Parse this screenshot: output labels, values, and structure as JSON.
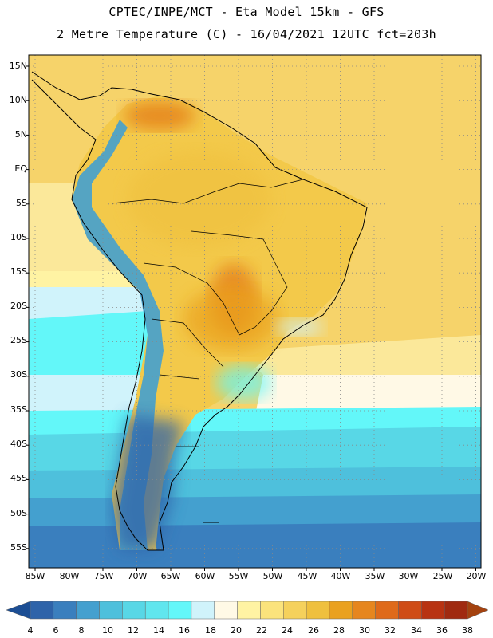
{
  "header": {
    "line1": "CPTEC/INPE/MCT -  Eta Model 15km - GFS",
    "line2": "2 Metre Temperature (C) - 16/04/2021 12UTC fct=203h"
  },
  "map": {
    "region": "South America",
    "lat_labels": [
      "15N",
      "10N",
      "5N",
      "EQ",
      "5S",
      "10S",
      "15S",
      "20S",
      "25S",
      "30S",
      "35S",
      "40S",
      "45S",
      "50S",
      "55S"
    ],
    "lon_labels": [
      "85W",
      "80W",
      "75W",
      "70W",
      "65W",
      "60W",
      "55W",
      "50W",
      "45W",
      "40W",
      "35W",
      "30W",
      "25W",
      "20W"
    ]
  },
  "legend": {
    "ticks": [
      "4",
      "6",
      "8",
      "10",
      "12",
      "14",
      "16",
      "18",
      "20",
      "22",
      "24",
      "26",
      "28",
      "30",
      "32",
      "34",
      "36",
      "38"
    ],
    "colors": [
      "#2e63a9",
      "#3a7fbe",
      "#44a0cf",
      "#4ec0dc",
      "#58d7e6",
      "#60e6ee",
      "#63f7f9",
      "#d0f3fb",
      "#fff9e6",
      "#fff3a3",
      "#fbe37c",
      "#f5d15c",
      "#efc03e",
      "#eaa11f",
      "#e6861e",
      "#df6a1a",
      "#cf4c16",
      "#b83312",
      "#a02a10"
    ],
    "low_color": "#1c4e94",
    "high_color": "#a4420f"
  }
}
